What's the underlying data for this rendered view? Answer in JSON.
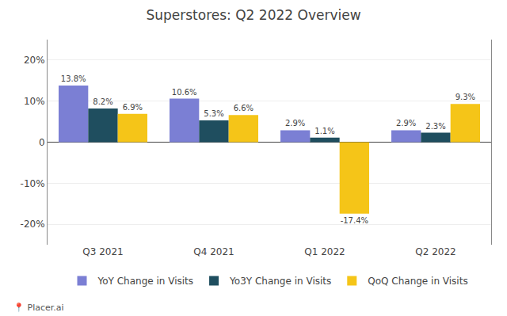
{
  "chart_data": {
    "type": "bar",
    "title": "Superstores: Q2 2022 Overview",
    "categories": [
      "Q3 2021",
      "Q4 2021",
      "Q1 2022",
      "Q2 2022"
    ],
    "series": [
      {
        "name": "YoY Change in Visits",
        "color": "#7B7FD4",
        "values": [
          13.8,
          10.6,
          2.9,
          2.9
        ],
        "value_labels": [
          "13.8%",
          "10.6%",
          "2.9%",
          "2.9%"
        ]
      },
      {
        "name": "Yo3Y Change in Visits",
        "color": "#1F4E5F",
        "values": [
          8.2,
          5.3,
          1.1,
          2.3
        ],
        "value_labels": [
          "8.2%",
          "5.3%",
          "1.1%",
          "2.3%"
        ]
      },
      {
        "name": "QoQ Change in Visits",
        "color": "#F5C518",
        "values": [
          6.9,
          6.6,
          -17.4,
          9.3
        ],
        "value_labels": [
          "6.9%",
          "6.6%",
          "-17.4%",
          "9.3%"
        ]
      }
    ],
    "ylim": [
      -25,
      25
    ],
    "yticks": [
      {
        "value": -20,
        "label": "-20%"
      },
      {
        "value": -10,
        "label": "-10%"
      },
      0,
      {
        "value": 10,
        "label": "10%"
      },
      {
        "value": 20,
        "label": "20%"
      }
    ],
    "grid": true,
    "legend": "bottom",
    "data_labels": true,
    "annotations": [
      "📍 Placer.ai"
    ]
  }
}
